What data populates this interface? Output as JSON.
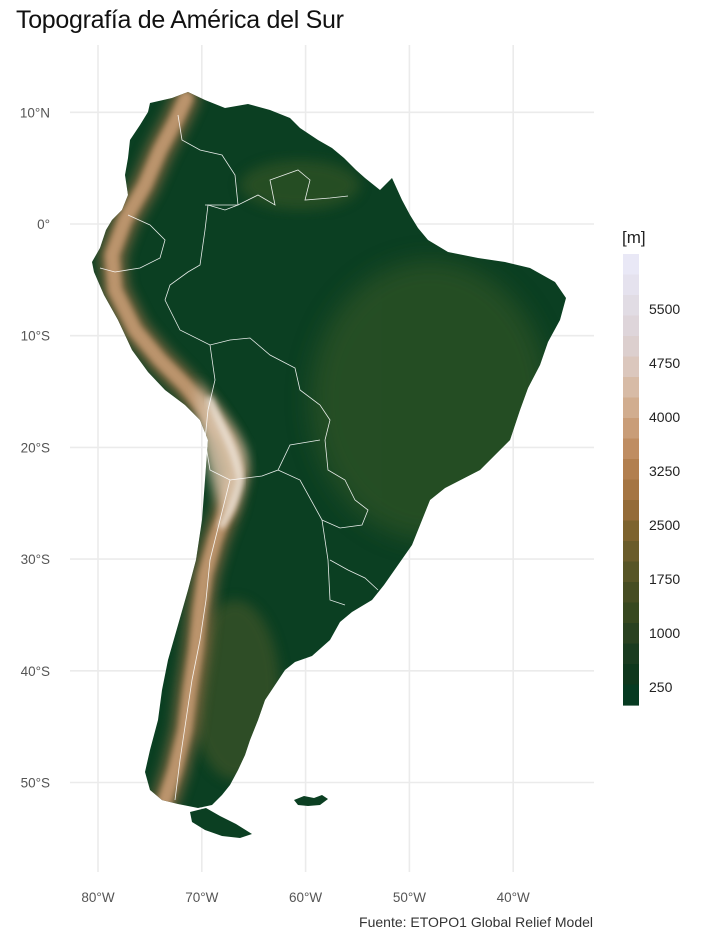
{
  "title": "Topografía de América del Sur",
  "caption": "Fuente: ETOPO1 Global Relief Model",
  "map": {
    "lat_ticks": [
      "10°N",
      "0°",
      "10°S",
      "20°S",
      "30°S",
      "40°S",
      "50°S"
    ],
    "lon_ticks": [
      "80°W",
      "70°W",
      "60°W",
      "50°W",
      "40°W"
    ],
    "land_base_color": "#0b3f22",
    "lowland_color": "#2a5224",
    "andes_color": "#b8916a",
    "highpeak_color": "#e8ddd0",
    "border_color": "#ffffff",
    "grid_color": "#ebebeb"
  },
  "legend": {
    "title": "[m]",
    "labels": [
      "5500",
      "4750",
      "4000",
      "3250",
      "2500",
      "1750",
      "1000",
      "250"
    ],
    "colors_top_to_bottom": [
      "#e9e8f6",
      "#e5e2ee",
      "#e1dce4",
      "#ded5da",
      "#dccfce",
      "#dbc7bd",
      "#d7bba6",
      "#d1ad8f",
      "#c99d78",
      "#bf8d62",
      "#b27f4f",
      "#a57543",
      "#946b38",
      "#7d632e",
      "#6a5c2a",
      "#575526",
      "#464d22",
      "#37481f",
      "#294120",
      "#1a3b1f",
      "#0f371c",
      "#063a21"
    ]
  }
}
